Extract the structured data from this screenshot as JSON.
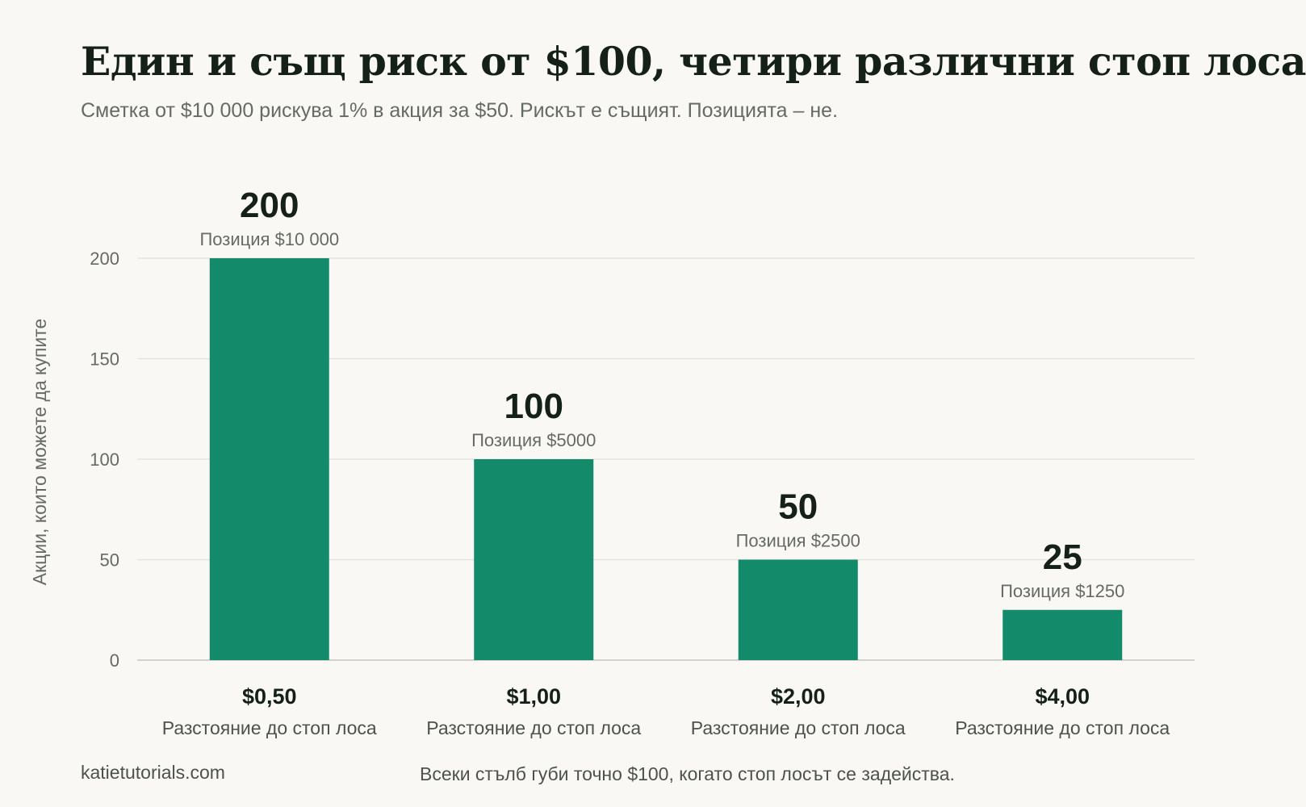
{
  "header": {
    "title": "Един и същ риск от $100, четири различни стоп лоса",
    "subtitle": "Сметка от $10 000 рискува 1% в акция за $50. Рискът е същият. Позицията – не."
  },
  "footer": {
    "source": "katietutorials.com",
    "note": "Всеки стълб губи точно $100, когато стоп лосът се задейства."
  },
  "colors": {
    "bar": "#138a69",
    "background": "#f9f8f4",
    "grid": "#e2e1dc",
    "title": "#152019",
    "muted": "#666a66"
  },
  "chart_data": {
    "type": "bar",
    "categories": [
      "$0,50",
      "$1,00",
      "$2,00",
      "$4,00"
    ],
    "category_sublabel": "Разстояние до стоп лоса",
    "values": [
      200,
      100,
      50,
      25
    ],
    "value_labels": [
      "200",
      "100",
      "50",
      "25"
    ],
    "bar_annotations": [
      "Позиция $10 000",
      "Позиция $5000",
      "Позиция $2500",
      "Позиция $1250"
    ],
    "xlabel": "",
    "ylabel": "Акции, които можете да купите",
    "ylim": [
      0,
      200
    ],
    "yticks": [
      0,
      50,
      100,
      150,
      200
    ],
    "grid": true,
    "legend": "none"
  }
}
